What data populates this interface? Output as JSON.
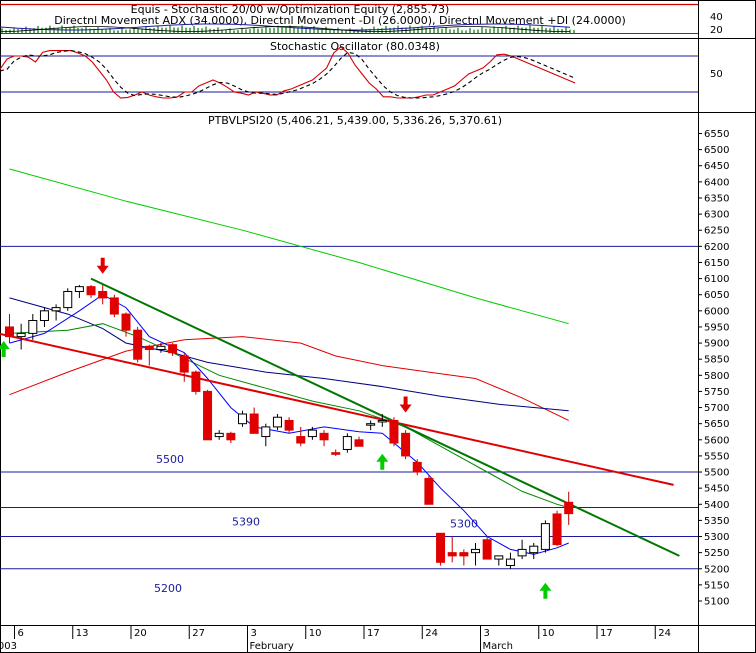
{
  "chart_data": [
    {
      "type": "line",
      "title": "Equis - Stochastic 20/00  w/Optimization Equity (2,855.73)",
      "subtitle": "Directnl Movement ADX (34.0000), Directnl Movement -DI (26.0000), Directnl Movement +DI (24.0000)",
      "y_ticks": [
        "40",
        "20"
      ],
      "colors": {
        "equity": "#d40000",
        "dmi": "#1a1aa0",
        "histogram": "#007a00"
      }
    },
    {
      "type": "line",
      "title": "Stochastic Oscillator (80.0348)",
      "y_ticks": [
        "50"
      ],
      "reference_lines": [
        80,
        20
      ],
      "ylim": [
        0,
        100
      ],
      "x": [
        0,
        1,
        2,
        3,
        4,
        5,
        6,
        7,
        8,
        9,
        10,
        11,
        12,
        13,
        14,
        15,
        16,
        17,
        18,
        19,
        20,
        21,
        22,
        23,
        24,
        25,
        26,
        27,
        28,
        29,
        30,
        31,
        32,
        33,
        34,
        35,
        36,
        37,
        38,
        39,
        40,
        41,
        42,
        43,
        44,
        45,
        46,
        47,
        48,
        49,
        50,
        51,
        52,
        53,
        54,
        55,
        56,
        57,
        58,
        59,
        60,
        61,
        62,
        63,
        64,
        65,
        66,
        67,
        68,
        69,
        70,
        71,
        72,
        73,
        74,
        75,
        76,
        77,
        78,
        79,
        80,
        81
      ],
      "series": [
        {
          "color": "#d40000",
          "values": [
            58,
            75,
            80,
            80,
            78,
            70,
            86,
            89,
            89,
            89,
            89,
            85,
            80,
            70,
            55,
            40,
            20,
            10,
            11,
            15,
            20,
            15,
            12,
            10,
            10,
            12,
            20,
            20,
            30,
            35,
            40,
            35,
            28,
            20,
            18,
            15,
            20,
            18,
            15,
            15,
            22,
            25,
            30,
            35,
            40,
            50,
            60,
            85,
            95,
            85,
            65,
            50,
            35,
            25,
            12,
            12,
            10,
            10,
            10,
            12,
            15,
            15,
            20,
            25,
            30,
            40,
            50,
            55,
            60,
            70,
            82,
            83,
            80,
            75,
            70,
            65,
            60,
            55,
            50,
            45,
            40,
            35
          ]
        },
        {
          "color": "#000000",
          "dash": "4,3",
          "values": [
            55,
            58,
            72,
            78,
            82,
            80,
            80,
            82,
            86,
            88,
            89,
            87,
            84,
            78,
            70,
            58,
            42,
            28,
            18,
            14,
            16,
            17,
            16,
            14,
            12,
            11,
            13,
            16,
            20,
            26,
            32,
            36,
            35,
            30,
            24,
            20,
            18,
            18,
            17,
            16,
            18,
            21,
            24,
            29,
            34,
            41,
            50,
            62,
            76,
            86,
            84,
            74,
            58,
            44,
            30,
            20,
            14,
            11,
            10,
            10,
            11,
            12,
            14,
            17,
            21,
            27,
            35,
            44,
            52,
            58,
            66,
            73,
            78,
            79,
            77,
            73,
            68,
            63,
            58,
            53,
            48,
            43
          ]
        }
      ]
    },
    {
      "type": "candlestick",
      "title": "PTBVLPSI20 (5,406.21, 5,439.00, 5,336.26, 5,370.61)",
      "ylim": [
        5100,
        6550
      ],
      "y_ticks": [
        6550,
        6500,
        6450,
        6400,
        6350,
        6300,
        6250,
        6200,
        6150,
        6100,
        6050,
        6000,
        5950,
        5900,
        5850,
        5800,
        5750,
        5700,
        5650,
        5600,
        5550,
        5500,
        5450,
        5400,
        5350,
        5300,
        5250,
        5200,
        5150,
        5100
      ],
      "x_tick_labels": [
        {
          "label": "6",
          "i": 0
        },
        {
          "label": "13",
          "i": 5
        },
        {
          "label": "20",
          "i": 10
        },
        {
          "label": "27",
          "i": 15
        },
        {
          "label": "3",
          "i": 20
        },
        {
          "label": "10",
          "i": 25
        },
        {
          "label": "17",
          "i": 30
        },
        {
          "label": "24",
          "i": 35
        },
        {
          "label": "3",
          "i": 40
        },
        {
          "label": "10",
          "i": 45
        },
        {
          "label": "17",
          "i": 50
        },
        {
          "label": "24",
          "i": 55
        }
      ],
      "month_labels": [
        {
          "label": "003",
          "i": -1.6
        },
        {
          "label": "February",
          "i": 20
        },
        {
          "label": "March",
          "i": 40
        }
      ],
      "candles": [
        [
          5950,
          5990,
          5900,
          5920
        ],
        [
          5920,
          5960,
          5880,
          5930
        ],
        [
          5930,
          5990,
          5910,
          5970
        ],
        [
          5970,
          6010,
          5950,
          6000
        ],
        [
          6000,
          6020,
          5970,
          6010
        ],
        [
          6010,
          6070,
          6000,
          6060
        ],
        [
          6060,
          6080,
          6040,
          6075
        ],
        [
          6075,
          6080,
          6040,
          6050
        ],
        [
          6060,
          6080,
          6020,
          6040
        ],
        [
          6040,
          6050,
          5980,
          5990
        ],
        [
          5990,
          5995,
          5920,
          5940
        ],
        [
          5940,
          5950,
          5840,
          5850
        ],
        [
          5890,
          5895,
          5830,
          5880
        ],
        [
          5880,
          5900,
          5870,
          5890
        ],
        [
          5895,
          5900,
          5860,
          5870
        ],
        [
          5860,
          5870,
          5780,
          5810
        ],
        [
          5810,
          5815,
          5740,
          5750
        ],
        [
          5750,
          5755,
          5600,
          5600
        ],
        [
          5610,
          5630,
          5600,
          5620
        ],
        [
          5620,
          5625,
          5590,
          5600
        ],
        [
          5650,
          5690,
          5640,
          5680
        ],
        [
          5680,
          5700,
          5620,
          5620
        ],
        [
          5610,
          5650,
          5580,
          5640
        ],
        [
          5640,
          5680,
          5630,
          5670
        ],
        [
          5660,
          5670,
          5620,
          5630
        ],
        [
          5610,
          5640,
          5580,
          5590
        ],
        [
          5610,
          5640,
          5600,
          5630
        ],
        [
          5620,
          5630,
          5580,
          5600
        ],
        [
          5560,
          5570,
          5550,
          5555
        ],
        [
          5570,
          5620,
          5560,
          5610
        ],
        [
          5600,
          5610,
          5580,
          5580
        ],
        [
          5650,
          5660,
          5630,
          5650
        ],
        [
          5660,
          5680,
          5640,
          5660
        ],
        [
          5660,
          5670,
          5580,
          5590
        ],
        [
          5620,
          5630,
          5540,
          5550
        ],
        [
          5530,
          5540,
          5490,
          5500
        ],
        [
          5480,
          5490,
          5400,
          5400
        ],
        [
          5310,
          5310,
          5210,
          5220
        ],
        [
          5250,
          5300,
          5220,
          5240
        ],
        [
          5250,
          5260,
          5210,
          5240
        ],
        [
          5250,
          5280,
          5210,
          5260
        ],
        [
          5290,
          5300,
          5230,
          5230
        ],
        [
          5230,
          5240,
          5210,
          5240
        ],
        [
          5210,
          5250,
          5200,
          5230
        ],
        [
          5240,
          5290,
          5230,
          5260
        ],
        [
          5250,
          5280,
          5230,
          5270
        ],
        [
          5260,
          5350,
          5250,
          5340
        ],
        [
          5370,
          5380,
          5270,
          5275
        ],
        [
          5406,
          5439,
          5336,
          5371
        ]
      ],
      "ma_blue": [
        [
          0,
          6040
        ],
        [
          5,
          5990
        ],
        [
          8,
          5945
        ],
        [
          10,
          5900
        ],
        [
          14,
          5870
        ],
        [
          17,
          5840
        ],
        [
          22,
          5810
        ],
        [
          27,
          5790
        ],
        [
          32,
          5765
        ],
        [
          37,
          5735
        ],
        [
          42,
          5710
        ],
        [
          48,
          5690
        ]
      ],
      "ma_green": [
        [
          0,
          6440
        ],
        [
          10,
          6340
        ],
        [
          20,
          6250
        ],
        [
          30,
          6150
        ],
        [
          40,
          6040
        ],
        [
          48,
          5960
        ]
      ],
      "ma_red": [
        [
          0,
          5740
        ],
        [
          5,
          5810
        ],
        [
          10,
          5875
        ],
        [
          15,
          5910
        ],
        [
          20,
          5920
        ],
        [
          25,
          5900
        ],
        [
          28,
          5860
        ],
        [
          32,
          5830
        ],
        [
          36,
          5810
        ],
        [
          40,
          5790
        ],
        [
          44,
          5730
        ],
        [
          48,
          5660
        ]
      ],
      "ma_blue_fast": [
        [
          0,
          5900
        ],
        [
          3,
          5930
        ],
        [
          6,
          6000
        ],
        [
          8,
          6050
        ],
        [
          10,
          6010
        ],
        [
          12,
          5920
        ],
        [
          15,
          5870
        ],
        [
          17,
          5790
        ],
        [
          19,
          5700
        ],
        [
          21,
          5640
        ],
        [
          24,
          5620
        ],
        [
          27,
          5640
        ],
        [
          30,
          5625
        ],
        [
          32,
          5620
        ],
        [
          35,
          5530
        ],
        [
          37,
          5450
        ],
        [
          39,
          5380
        ],
        [
          41,
          5300
        ],
        [
          43,
          5260
        ],
        [
          45,
          5245
        ],
        [
          47,
          5265
        ],
        [
          48,
          5280
        ]
      ],
      "ma_green_med": [
        [
          0,
          5930
        ],
        [
          5,
          5940
        ],
        [
          8,
          5960
        ],
        [
          11,
          5920
        ],
        [
          14,
          5870
        ],
        [
          18,
          5800
        ],
        [
          22,
          5760
        ],
        [
          26,
          5720
        ],
        [
          30,
          5690
        ],
        [
          34,
          5640
        ],
        [
          38,
          5560
        ],
        [
          41,
          5500
        ],
        [
          44,
          5440
        ],
        [
          47,
          5400
        ],
        [
          48,
          5390
        ]
      ],
      "trendline_red": [
        [
          -1,
          5930
        ],
        [
          57,
          5460
        ]
      ],
      "trendline_green": [
        [
          7,
          6100
        ],
        [
          57.5,
          5240
        ]
      ],
      "horizontal_levels": [
        {
          "value": 6200,
          "label": ""
        },
        {
          "value": 5500,
          "label": "5500"
        },
        {
          "value": 5390,
          "label": "5390"
        },
        {
          "value": 5300,
          "label": "5300"
        },
        {
          "value": 5200,
          "label": "5200"
        }
      ],
      "signals": [
        {
          "type": "buy",
          "i": -0.5,
          "value": 5950
        },
        {
          "type": "sell",
          "i": 8,
          "value": 6090
        },
        {
          "type": "buy",
          "i": 32,
          "value": 5600
        },
        {
          "type": "sell",
          "i": 34,
          "value": 5660
        },
        {
          "type": "buy",
          "i": 46,
          "value": 5200
        }
      ]
    }
  ]
}
